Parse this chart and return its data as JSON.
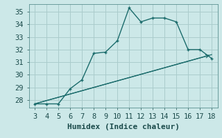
{
  "xlabel": "Humidex (Indice chaleur)",
  "bg_color": "#cce8e8",
  "grid_color": "#aacccc",
  "line_color": "#1a6b6b",
  "xlim": [
    2.5,
    18.5
  ],
  "ylim": [
    27.4,
    35.6
  ],
  "xticks": [
    3,
    4,
    5,
    6,
    7,
    8,
    9,
    10,
    11,
    12,
    13,
    14,
    15,
    16,
    17,
    18
  ],
  "yticks": [
    28,
    29,
    30,
    31,
    32,
    33,
    34,
    35
  ],
  "curve1_x": [
    3,
    4,
    5,
    6,
    7,
    8,
    9,
    10,
    11,
    12,
    13,
    14,
    15,
    16,
    17,
    18
  ],
  "curve1_y": [
    27.7,
    27.7,
    27.7,
    28.9,
    29.6,
    31.7,
    31.8,
    32.7,
    35.3,
    34.2,
    34.5,
    34.5,
    34.2,
    32.0,
    32.0,
    31.3
  ],
  "curve2_x": [
    3,
    18
  ],
  "curve2_y": [
    27.7,
    31.6
  ],
  "font_size": 7.5,
  "xlabel_fontsize": 8
}
